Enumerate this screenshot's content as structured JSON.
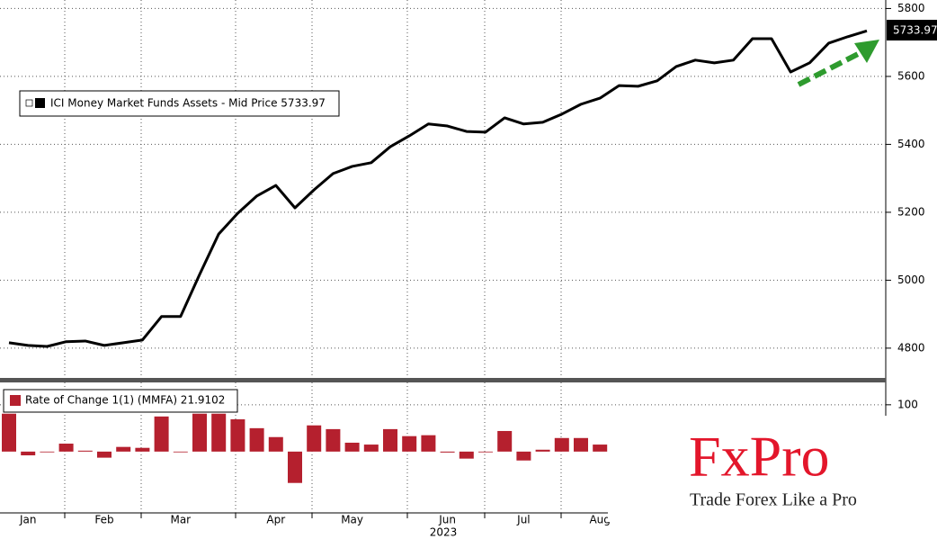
{
  "x_axis": {
    "categories": [
      null,
      "Jan",
      null,
      null,
      null,
      "Feb",
      null,
      null,
      null,
      "Mar",
      null,
      null,
      null,
      null,
      "Apr",
      null,
      null,
      null,
      "May",
      null,
      null,
      null,
      null,
      "Jun",
      null,
      null,
      null,
      "Jul",
      null,
      null,
      null,
      "Aug",
      null,
      null,
      null,
      null,
      null,
      null,
      null,
      null,
      null,
      null,
      null,
      null,
      null,
      null
    ],
    "year": "2023"
  },
  "chart_data": [
    {
      "type": "line",
      "series": [
        {
          "name": "ICI Money Market Funds Assets - Mid Price 5733.97",
          "color": "#000000",
          "values": [
            4816,
            4808,
            4805,
            4819,
            4821,
            4808,
            4816,
            4824,
            4893,
            4893,
            5017,
            5136,
            5197,
            5248,
            5279,
            5213,
            5266,
            5314,
            5335,
            5346,
            5393,
            5425,
            5460,
            5454,
            5438,
            5436,
            5478,
            5460,
            5465,
            5489,
            5518,
            5536,
            5573,
            5571,
            5587,
            5629,
            5648,
            5640,
            5648,
            5711,
            5711,
            5613,
            5640,
            5698,
            5717,
            5733.97
          ]
        }
      ],
      "last_value_label": "5733.97",
      "ylim": [
        4707,
        5825
      ],
      "yticks": [
        4800,
        5000,
        5200,
        5400,
        5600,
        5800
      ],
      "grid": true
    },
    {
      "type": "bar",
      "series": [
        {
          "name": "Rate of Change 1(1) (MMFA) 21.9102",
          "color": "#b5202e",
          "values": [
            81,
            -8,
            0,
            17,
            2,
            -13,
            10,
            8,
            75,
            0,
            81,
            81,
            69,
            50,
            31,
            -67,
            56,
            48,
            19,
            15,
            48,
            33,
            35,
            -2,
            -15,
            0,
            44,
            -19,
            4,
            29,
            29,
            15,
            null,
            null,
            null,
            null,
            null,
            null,
            null,
            null,
            null,
            null,
            null,
            null,
            null,
            null
          ]
        }
      ],
      "ylim": [
        -131,
        142
      ],
      "yticks": [
        100
      ],
      "grid": true
    }
  ],
  "watermark": {
    "brand": "FxPro",
    "slogan": "Trade Forex Like a Pro"
  }
}
